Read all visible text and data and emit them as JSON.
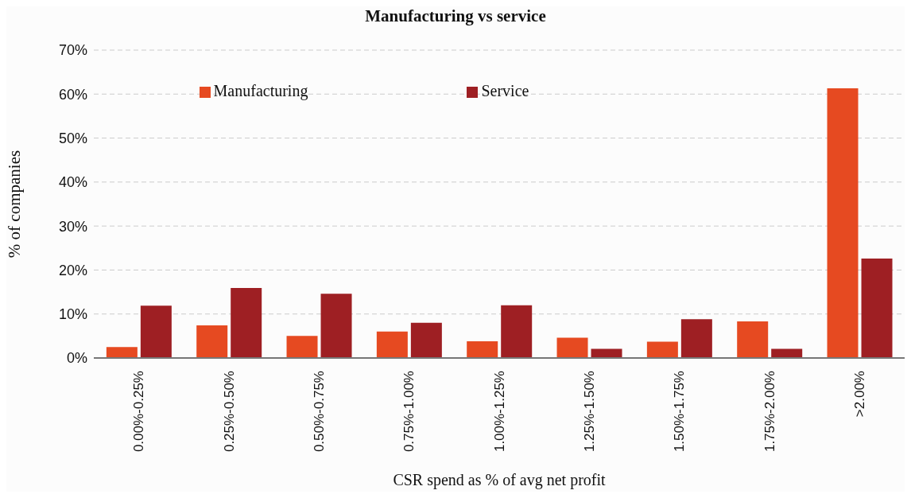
{
  "chart_data": {
    "type": "bar",
    "title": "Manufacturing vs service",
    "xlabel": "CSR spend as % of avg net profit",
    "ylabel": "% of companies",
    "categories": [
      "0.00%-0.25%",
      "0.25%-0.50%",
      "0.50%-0.75%",
      "0.75%-1.00%",
      "1.00%-1.25%",
      "1.25%-1.50%",
      "1.50%-1.75%",
      "1.75%-2.00%",
      ">2.00%"
    ],
    "series": [
      {
        "name": "Manufacturing",
        "color": "#e64a21",
        "values": [
          2.5,
          7.4,
          5.0,
          6.0,
          3.8,
          4.6,
          3.7,
          8.3,
          61.3
        ]
      },
      {
        "name": "Service",
        "color": "#9e1f23",
        "values": [
          11.9,
          15.9,
          14.6,
          8.0,
          12.0,
          2.1,
          8.8,
          2.1,
          22.6
        ]
      }
    ],
    "ylim": [
      0,
      70
    ],
    "yticks": [
      {
        "value": 0,
        "label": "0%"
      },
      {
        "value": 10,
        "label": "10%"
      },
      {
        "value": 20,
        "label": "20%"
      },
      {
        "value": 30,
        "label": "30%"
      },
      {
        "value": 40,
        "label": "40%"
      },
      {
        "value": 50,
        "label": "50%"
      },
      {
        "value": 60,
        "label": "60%"
      },
      {
        "value": 70,
        "label": "70%"
      }
    ],
    "grid": "y",
    "legend": "top"
  }
}
